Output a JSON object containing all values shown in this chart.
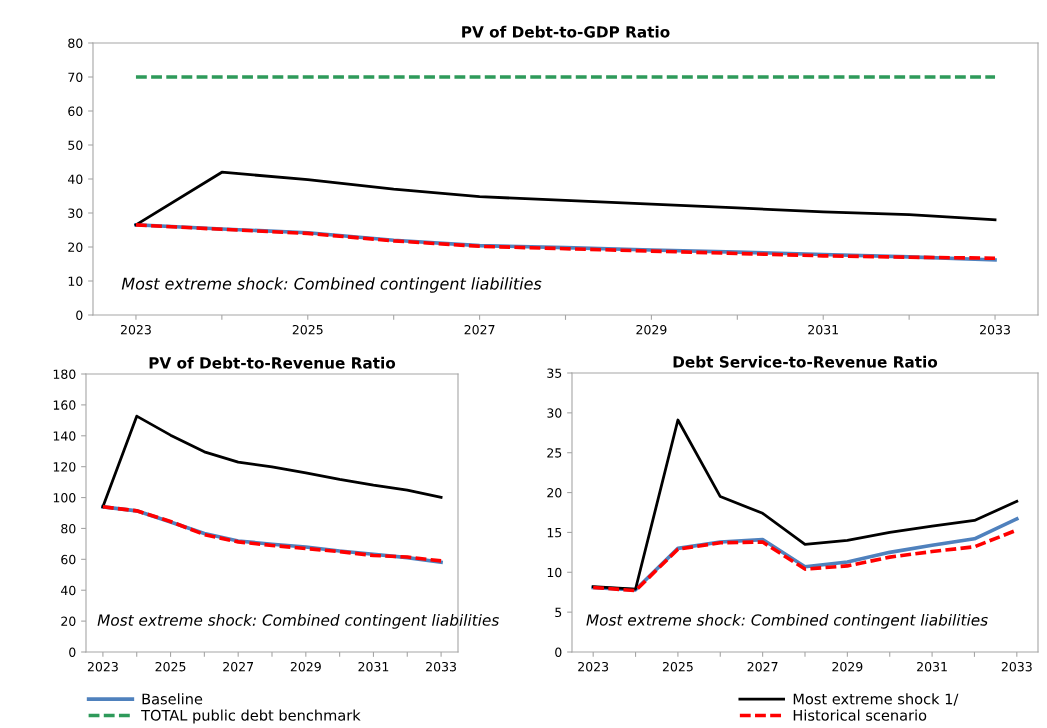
{
  "chart_data": [
    {
      "type": "line",
      "title": "PV of Debt-to-GDP Ratio",
      "categories": [
        "2023",
        null,
        "2025",
        null,
        "2027",
        null,
        "2029",
        null,
        "2031",
        null,
        "2033"
      ],
      "ylim": [
        0,
        80
      ],
      "yticks": [
        0,
        10,
        20,
        30,
        40,
        50,
        60,
        70,
        80
      ],
      "grid": false,
      "legend": "bottom",
      "marker": "none",
      "annotations": [
        "Most extreme shock: Combined contingent liabilities"
      ],
      "series": [
        {
          "name": "Baseline",
          "color": "#4f81bd",
          "line_style": "solid",
          "values": [
            26.5,
            25.3,
            24.2,
            22,
            20.4,
            19.8,
            19.1,
            18.5,
            17.8,
            17.1,
            16.2
          ]
        },
        {
          "name": "TOTAL public debt benchmark",
          "color": "#2e9a5a",
          "line_style": "dashed",
          "values": [
            70,
            70,
            70,
            70,
            70,
            70,
            70,
            70,
            70,
            70,
            70
          ]
        },
        {
          "name": "Most extreme shock 1/",
          "color": "#000000",
          "line_style": "solid",
          "values": [
            26.5,
            42,
            39.8,
            37,
            34.8,
            33.7,
            32.6,
            31.5,
            30.3,
            29.5,
            28
          ]
        },
        {
          "name": "Historical scenario",
          "color": "#ff0000",
          "line_style": "dashed",
          "values": [
            26.5,
            25.2,
            24,
            21.8,
            20.2,
            19.5,
            18.8,
            18.1,
            17.4,
            17.0,
            16.7
          ]
        }
      ]
    },
    {
      "type": "line",
      "title": "PV of Debt-to-Revenue Ratio",
      "categories": [
        "2023",
        null,
        "2025",
        null,
        "2027",
        null,
        "2029",
        null,
        "2031",
        null,
        "2033"
      ],
      "ylim": [
        0,
        180
      ],
      "yticks": [
        0,
        20,
        40,
        60,
        80,
        100,
        120,
        140,
        160,
        180
      ],
      "grid": false,
      "marker": "none",
      "annotations": [
        "Most extreme shock: Combined contingent liabilities"
      ],
      "series": [
        {
          "color": "#4f81bd",
          "line_style": "solid",
          "values": [
            94,
            91.4,
            84.2,
            76.7,
            71.9,
            69.8,
            68,
            65.4,
            63.3,
            61.1,
            58.1
          ]
        },
        {
          "color": "#000000",
          "line_style": "solid",
          "values": [
            94,
            152.7,
            140.4,
            129.6,
            122.9,
            119.9,
            116,
            111.7,
            108,
            104.8,
            100.2
          ]
        },
        {
          "color": "#ff0000",
          "line_style": "dashed",
          "values": [
            94,
            91.4,
            84.5,
            76,
            71.3,
            69,
            67,
            65,
            62.5,
            61.5,
            59
          ]
        }
      ]
    },
    {
      "type": "line",
      "title": "Debt Service-to-Revenue Ratio",
      "categories": [
        "2023",
        null,
        "2025",
        null,
        "2027",
        null,
        "2029",
        null,
        "2031",
        null,
        "2033"
      ],
      "ylim": [
        0,
        35
      ],
      "yticks": [
        0,
        5,
        10,
        15,
        20,
        25,
        30,
        35
      ],
      "grid": false,
      "marker": "none",
      "annotations": [
        "Most extreme shock: Combined contingent liabilities"
      ],
      "series": [
        {
          "color": "#4f81bd",
          "line_style": "solid",
          "values": [
            8.1,
            7.8,
            13.0,
            13.8,
            14.1,
            10.7,
            11.3,
            12.5,
            13.4,
            14.2,
            16.7
          ]
        },
        {
          "color": "#000000",
          "line_style": "solid",
          "values": [
            8.2,
            7.9,
            29.1,
            19.5,
            17.4,
            13.5,
            14.0,
            15.0,
            15.8,
            16.5,
            18.9
          ]
        },
        {
          "color": "#ff0000",
          "line_style": "dashed",
          "values": [
            8.1,
            7.7,
            12.9,
            13.7,
            13.8,
            10.4,
            10.8,
            11.9,
            12.6,
            13.2,
            15.3
          ]
        }
      ]
    }
  ]
}
